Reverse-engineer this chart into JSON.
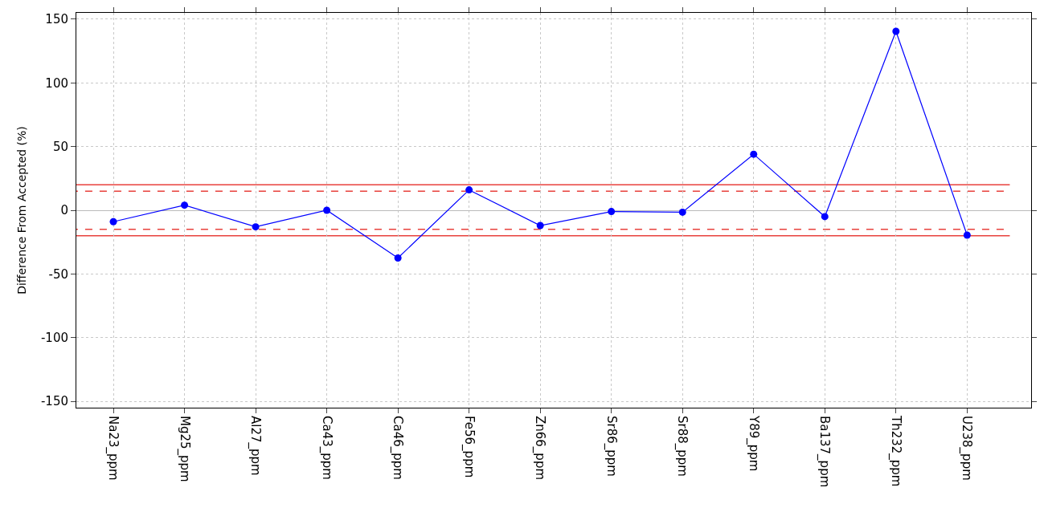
{
  "chart_data": {
    "type": "line",
    "ylabel": "Difference From Accepted (%)",
    "categories": [
      "Na23_ppm",
      "Mg25_ppm",
      "Al27_ppm",
      "Ca43_ppm",
      "Ca46_ppm",
      "Fe56_ppm",
      "Zn66_ppm",
      "Sr86_ppm",
      "Sr88_ppm",
      "Y89_ppm",
      "Ba137_ppm",
      "Th232_ppm",
      "U238_ppm"
    ],
    "series": [
      {
        "color": "#0000ff",
        "values": [
          -9,
          4,
          -13,
          0,
          -37.5,
          16,
          -12,
          -1,
          -1.5,
          44,
          -5,
          140.5,
          -19.5
        ]
      }
    ],
    "ylim": [
      -155,
      155
    ],
    "yticks": [
      -150,
      -100,
      -50,
      0,
      50,
      100,
      150
    ],
    "grid": true,
    "marker": "circle",
    "line_style": "solid",
    "ref_lines": [
      {
        "axis": "y",
        "value": 20,
        "color": "#e8413c",
        "line_style": "solid"
      },
      {
        "axis": "y",
        "value": 15,
        "color": "#e8413c",
        "line_style": "dashed"
      },
      {
        "axis": "y",
        "value": -15,
        "color": "#e8413c",
        "line_style": "dashed"
      },
      {
        "axis": "y",
        "value": -20,
        "color": "#e8413c",
        "line_style": "solid"
      }
    ]
  }
}
